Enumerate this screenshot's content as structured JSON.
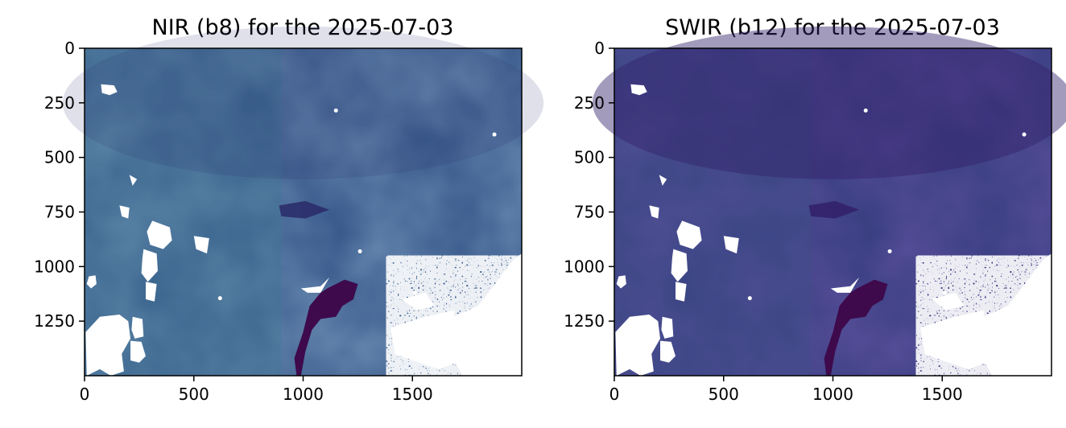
{
  "chart_data": [
    {
      "type": "heatmap",
      "title": "NIR (b8) for the 2025-07-03",
      "xlim": [
        0,
        2000
      ],
      "ylim": [
        1500,
        0
      ],
      "xticks": [
        "0",
        "500",
        "1000",
        "1500"
      ],
      "yticks": [
        "0",
        "250",
        "500",
        "750",
        "1000",
        "1250"
      ],
      "colors": {
        "base": "#3a5a8c",
        "light": "#3f7793",
        "dark": "#2b2e6a",
        "water": "#3e0a4c",
        "cloud": "#ffffff"
      }
    },
    {
      "type": "heatmap",
      "title": "SWIR (b12) for the 2025-07-03",
      "xlim": [
        0,
        2000
      ],
      "ylim": [
        1500,
        0
      ],
      "xticks": [
        "0",
        "500",
        "1000",
        "1500"
      ],
      "yticks": [
        "0",
        "250",
        "500",
        "750",
        "1000",
        "1250"
      ],
      "colors": {
        "base": "#3a3f82",
        "light": "#3c4f88",
        "dark": "#32216a",
        "water": "#3e0a4c",
        "cloud": "#ffffff"
      }
    }
  ]
}
